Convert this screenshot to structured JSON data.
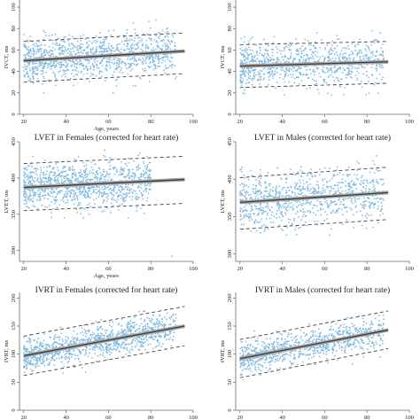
{
  "chart_data": [
    {
      "type": "scatter",
      "title": "",
      "xlabel": "Age, years",
      "ylabel": "IVCT, ms",
      "xlim": [
        18,
        100
      ],
      "ylim": [
        0,
        110
      ],
      "xticks": [
        20,
        40,
        60,
        80,
        100
      ],
      "yticks": [
        0,
        20,
        40,
        60,
        80,
        100
      ],
      "fit": {
        "x_start": 20,
        "x_end": 96,
        "y_start": 50,
        "y_end": 59
      },
      "band_lower": {
        "x_start": 20,
        "x_end": 96,
        "y_start": 30,
        "y_end": 38
      },
      "band_upper": {
        "x_start": 20,
        "x_end": 96,
        "y_start": 68,
        "y_end": 76
      },
      "points": {
        "count": 1100,
        "x_min": 20,
        "x_max": 92,
        "y_sd": 10,
        "y_min_clip": 20,
        "y_max_clip": 88,
        "seed": 11
      },
      "outliers": []
    },
    {
      "type": "scatter",
      "title": "",
      "xlabel": "",
      "ylabel": "IVCT, ms",
      "xlim": [
        18,
        100
      ],
      "ylim": [
        0,
        110
      ],
      "xticks": [
        20,
        40,
        60,
        80,
        100
      ],
      "yticks": [
        0,
        20,
        40,
        60,
        80,
        100
      ],
      "fit": {
        "x_start": 20,
        "x_end": 90,
        "y_start": 45,
        "y_end": 49
      },
      "band_lower": {
        "x_start": 20,
        "x_end": 90,
        "y_start": 25,
        "y_end": 29
      },
      "band_upper": {
        "x_start": 20,
        "x_end": 90,
        "y_start": 65,
        "y_end": 68
      },
      "points": {
        "count": 900,
        "x_min": 20,
        "x_max": 88,
        "y_sd": 10,
        "y_min_clip": 18,
        "y_max_clip": 88,
        "seed": 23
      },
      "outliers": []
    },
    {
      "type": "scatter",
      "title": "LVET in Females (corrected for heart rate)",
      "xlabel": "Age, years",
      "ylabel": "LVET, ms",
      "xlim": [
        18,
        100
      ],
      "ylim": [
        285,
        450
      ],
      "xticks": [
        20,
        40,
        60,
        80,
        100
      ],
      "yticks": [
        300,
        350,
        400,
        450
      ],
      "fit": {
        "x_start": 20,
        "x_end": 96,
        "y_start": 387,
        "y_end": 398
      },
      "band_lower": {
        "x_start": 20,
        "x_end": 96,
        "y_start": 355,
        "y_end": 365
      },
      "band_upper": {
        "x_start": 20,
        "x_end": 96,
        "y_start": 420,
        "y_end": 430
      },
      "points": {
        "count": 1100,
        "x_min": 20,
        "x_max": 80,
        "y_sd": 15,
        "y_min_clip": 345,
        "y_max_clip": 445,
        "seed": 37
      },
      "outliers": [
        {
          "x": 90,
          "y": 292
        }
      ]
    },
    {
      "type": "scatter",
      "title": "LVET in Males (corrected for heart rate)",
      "xlabel": "",
      "ylabel": "LVET, ms",
      "xlim": [
        18,
        100
      ],
      "ylim": [
        290,
        450
      ],
      "xticks": [
        20,
        40,
        60,
        80,
        100
      ],
      "yticks": [
        300,
        350,
        400,
        450
      ],
      "fit": {
        "x_start": 20,
        "x_end": 90,
        "y_start": 369,
        "y_end": 382
      },
      "band_lower": {
        "x_start": 20,
        "x_end": 90,
        "y_start": 333,
        "y_end": 346
      },
      "band_upper": {
        "x_start": 20,
        "x_end": 90,
        "y_start": 402,
        "y_end": 416
      },
      "points": {
        "count": 900,
        "x_min": 20,
        "x_max": 88,
        "y_sd": 18,
        "y_min_clip": 320,
        "y_max_clip": 445,
        "seed": 53
      },
      "outliers": []
    },
    {
      "type": "scatter",
      "title": "IVRT in Females (corrected for heart rate)",
      "xlabel": "",
      "ylabel": "IVRT, ms",
      "xlim": [
        18,
        100
      ],
      "ylim": [
        0,
        210
      ],
      "xticks": [
        20,
        40,
        60,
        80,
        100
      ],
      "yticks": [
        0,
        50,
        100,
        150,
        200
      ],
      "fit": {
        "x_start": 20,
        "x_end": 96,
        "y_start": 97,
        "y_end": 150
      },
      "band_lower": {
        "x_start": 20,
        "x_end": 96,
        "y_start": 62,
        "y_end": 115
      },
      "band_upper": {
        "x_start": 20,
        "x_end": 96,
        "y_start": 132,
        "y_end": 185
      },
      "points": {
        "count": 1100,
        "x_min": 20,
        "x_max": 92,
        "y_sd": 14,
        "y_min_clip": 55,
        "y_max_clip": 200,
        "seed": 71
      },
      "outliers": []
    },
    {
      "type": "scatter",
      "title": "IVRT in Males (corrected for heart rate)",
      "xlabel": "",
      "ylabel": "IVRT, ms",
      "xlim": [
        18,
        100
      ],
      "ylim": [
        0,
        210
      ],
      "xticks": [
        20,
        40,
        60,
        80,
        100
      ],
      "yticks": [
        0,
        50,
        100,
        150,
        200
      ],
      "fit": {
        "x_start": 20,
        "x_end": 90,
        "y_start": 92,
        "y_end": 143
      },
      "band_lower": {
        "x_start": 20,
        "x_end": 90,
        "y_start": 58,
        "y_end": 110
      },
      "band_upper": {
        "x_start": 20,
        "x_end": 90,
        "y_start": 126,
        "y_end": 177
      },
      "points": {
        "count": 900,
        "x_min": 20,
        "x_max": 88,
        "y_sd": 14,
        "y_min_clip": 50,
        "y_max_clip": 195,
        "seed": 89
      },
      "outliers": []
    }
  ],
  "colors": {
    "points": "#7fb8df",
    "fit_line": "#3a3a3a",
    "ci_band": "#a9a9a9",
    "dashed": "#444444",
    "frame": "#666666"
  }
}
